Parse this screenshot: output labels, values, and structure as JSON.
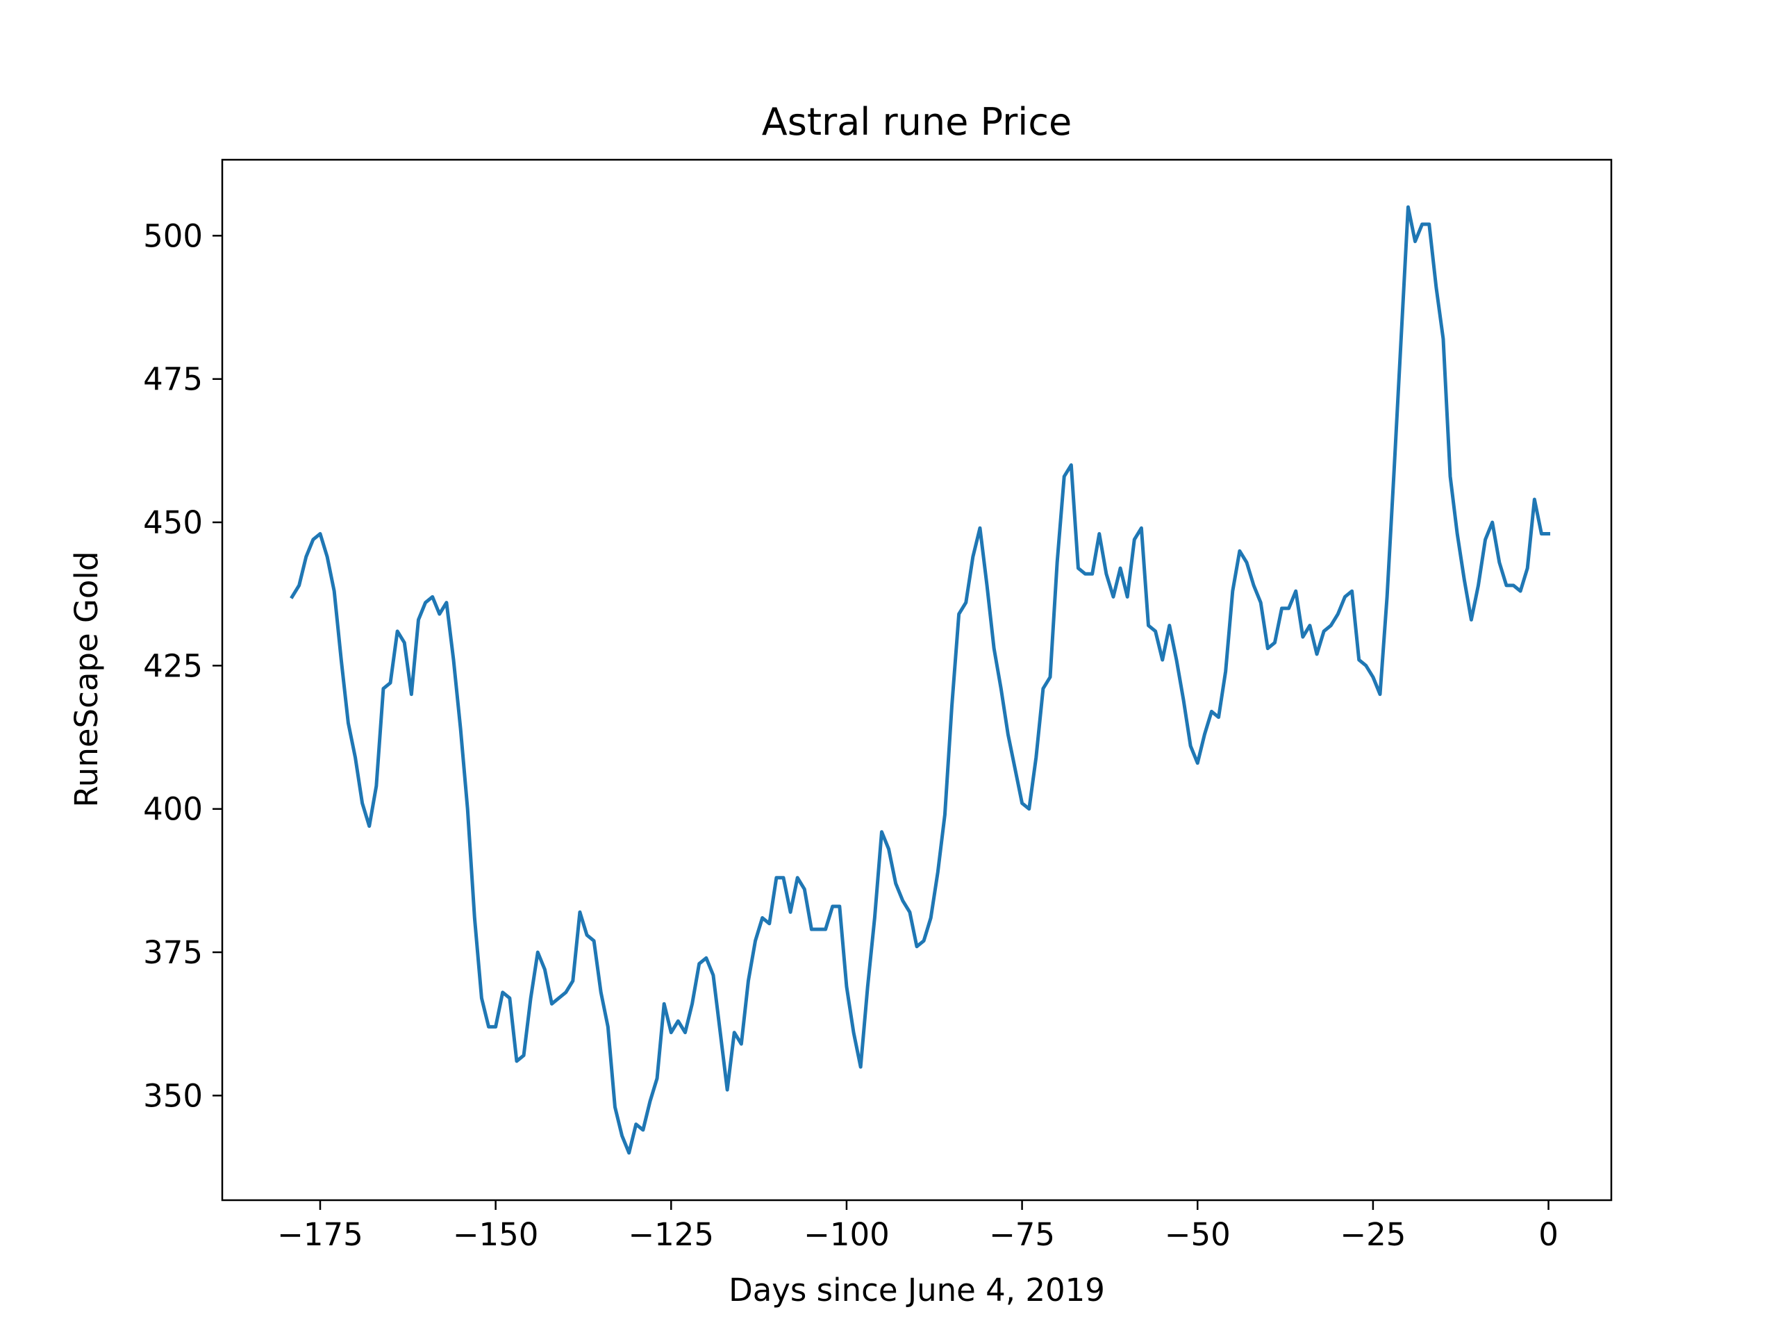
{
  "chart_data": {
    "type": "line",
    "title": "Astral rune Price",
    "xlabel": "Days since June 4, 2019",
    "ylabel": "RuneScape Gold",
    "xlim": [
      -188.95,
      8.95
    ],
    "ylim": [
      331.75,
      513.25
    ],
    "grid": false,
    "line_color": "#1f77b4",
    "x_ticks": [
      -175,
      -150,
      -125,
      -100,
      -75,
      -50,
      -25,
      0
    ],
    "x_tick_labels": [
      "−175",
      "−150",
      "−125",
      "−100",
      "−75",
      "−50",
      "−25",
      "0"
    ],
    "y_ticks": [
      350,
      375,
      400,
      425,
      450,
      475,
      500
    ],
    "y_tick_labels": [
      "350",
      "375",
      "400",
      "425",
      "450",
      "475",
      "500"
    ],
    "series": [
      {
        "x": [
          -179,
          -178,
          -177,
          -176,
          -175,
          -174,
          -173,
          -172,
          -171,
          -170,
          -169,
          -168,
          -167,
          -166,
          -165,
          -164,
          -163,
          -162,
          -161,
          -160,
          -159,
          -158,
          -157,
          -156,
          -155,
          -154,
          -153,
          -152,
          -151,
          -150,
          -149,
          -148,
          -147,
          -146,
          -145,
          -144,
          -143,
          -142,
          -141,
          -140,
          -139,
          -138,
          -137,
          -136,
          -135,
          -134,
          -133,
          -132,
          -131,
          -130,
          -129,
          -128,
          -127,
          -126,
          -125,
          -124,
          -123,
          -122,
          -121,
          -120,
          -119,
          -118,
          -117,
          -116,
          -115,
          -114,
          -113,
          -112,
          -111,
          -110,
          -109,
          -108,
          -107,
          -106,
          -105,
          -104,
          -103,
          -102,
          -101,
          -100,
          -99,
          -98,
          -97,
          -96,
          -95,
          -94,
          -93,
          -92,
          -91,
          -90,
          -89,
          -88,
          -87,
          -86,
          -85,
          -84,
          -83,
          -82,
          -81,
          -80,
          -79,
          -78,
          -77,
          -76,
          -75,
          -74,
          -73,
          -72,
          -71,
          -70,
          -69,
          -68,
          -67,
          -66,
          -65,
          -64,
          -63,
          -62,
          -61,
          -60,
          -59,
          -58,
          -57,
          -56,
          -55,
          -54,
          -53,
          -52,
          -51,
          -50,
          -49,
          -48,
          -47,
          -46,
          -45,
          -44,
          -43,
          -42,
          -41,
          -40,
          -39,
          -38,
          -37,
          -36,
          -35,
          -34,
          -33,
          -32,
          -31,
          -30,
          -29,
          -28,
          -27,
          -26,
          -25,
          -24,
          -23,
          -22,
          -21,
          -20,
          -19,
          -18,
          -17,
          -16,
          -15,
          -14,
          -13,
          -12,
          -11,
          -10,
          -9,
          -8,
          -7,
          -6,
          -5,
          -4,
          -3,
          -2,
          -1,
          0
        ],
        "y": [
          437,
          439,
          444,
          447,
          448,
          444,
          438,
          426,
          415,
          409,
          401,
          397,
          404,
          421,
          422,
          431,
          429,
          420,
          433,
          436,
          437,
          434,
          436,
          426,
          414,
          400,
          381,
          367,
          362,
          362,
          368,
          367,
          356,
          357,
          367,
          375,
          372,
          366,
          367,
          368,
          370,
          382,
          378,
          377,
          368,
          362,
          348,
          343,
          340,
          345,
          344,
          349,
          353,
          366,
          361,
          363,
          361,
          366,
          373,
          374,
          371,
          361,
          351,
          361,
          359,
          370,
          377,
          381,
          380,
          388,
          388,
          382,
          388,
          386,
          379,
          379,
          379,
          383,
          383,
          369,
          361,
          355,
          369,
          381,
          396,
          393,
          387,
          384,
          382,
          376,
          377,
          381,
          389,
          399,
          418,
          434,
          436,
          444,
          449,
          439,
          428,
          421,
          413,
          407,
          401,
          400,
          409,
          421,
          423,
          443,
          458,
          460,
          442,
          441,
          441,
          448,
          441,
          437,
          442,
          437,
          447,
          449,
          432,
          431,
          426,
          432,
          426,
          419,
          411,
          408,
          413,
          417,
          416,
          424,
          438,
          445,
          443,
          439,
          436,
          428,
          429,
          435,
          435,
          438,
          430,
          432,
          427,
          431,
          432,
          434,
          437,
          438,
          426,
          425,
          423,
          420,
          437,
          459,
          482,
          505,
          499,
          502,
          502,
          491,
          482,
          458,
          448,
          440,
          433,
          439,
          447,
          450,
          443,
          439,
          439,
          438,
          442,
          454,
          448,
          448
        ]
      }
    ]
  }
}
